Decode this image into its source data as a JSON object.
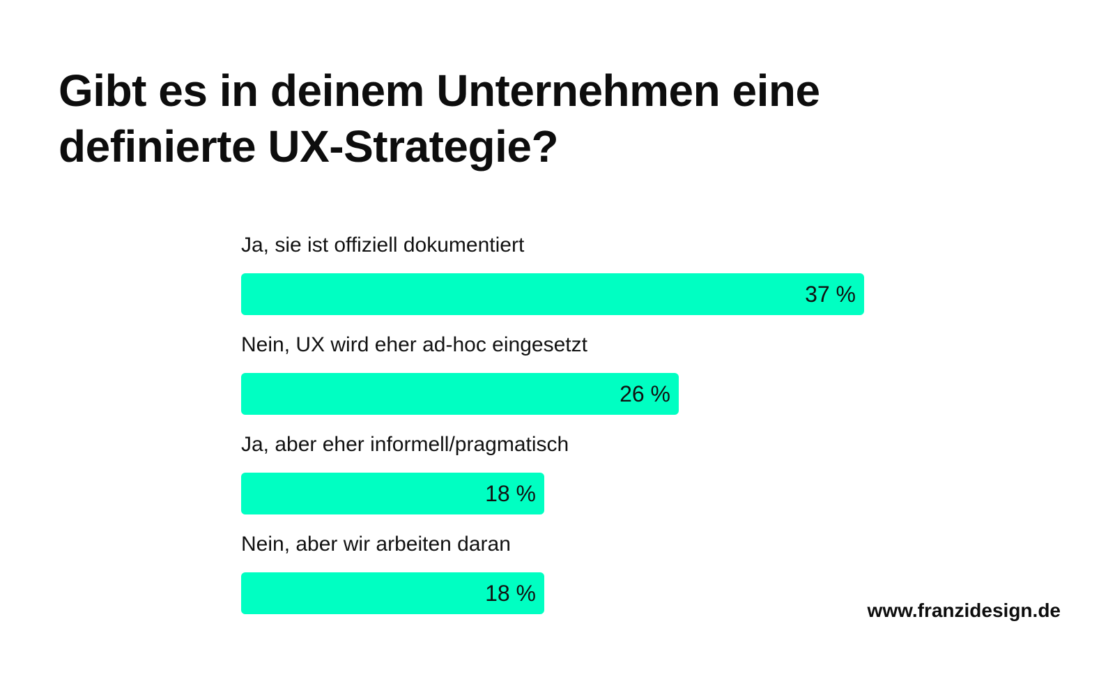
{
  "chart_data": {
    "type": "bar",
    "orientation": "horizontal",
    "title": "Gibt es in deinem Unternehmen eine definierte UX-Strategie?",
    "unit": "%",
    "bar_color": "#00ffc2",
    "xlim": [
      0,
      37
    ],
    "grid": false,
    "bars": [
      {
        "label": "Ja, sie ist offiziell dokumentiert",
        "value": 37,
        "value_label": "37 %"
      },
      {
        "label": "Nein, UX wird eher ad-hoc eingesetzt",
        "value": 26,
        "value_label": "26 %"
      },
      {
        "label": "Ja, aber eher informell/pragmatisch",
        "value": 18,
        "value_label": "18 %"
      },
      {
        "label": "Nein, aber wir arbeiten daran",
        "value": 18,
        "value_label": "18 %"
      }
    ]
  },
  "footer": {
    "source": "www.franzidesign.de"
  }
}
